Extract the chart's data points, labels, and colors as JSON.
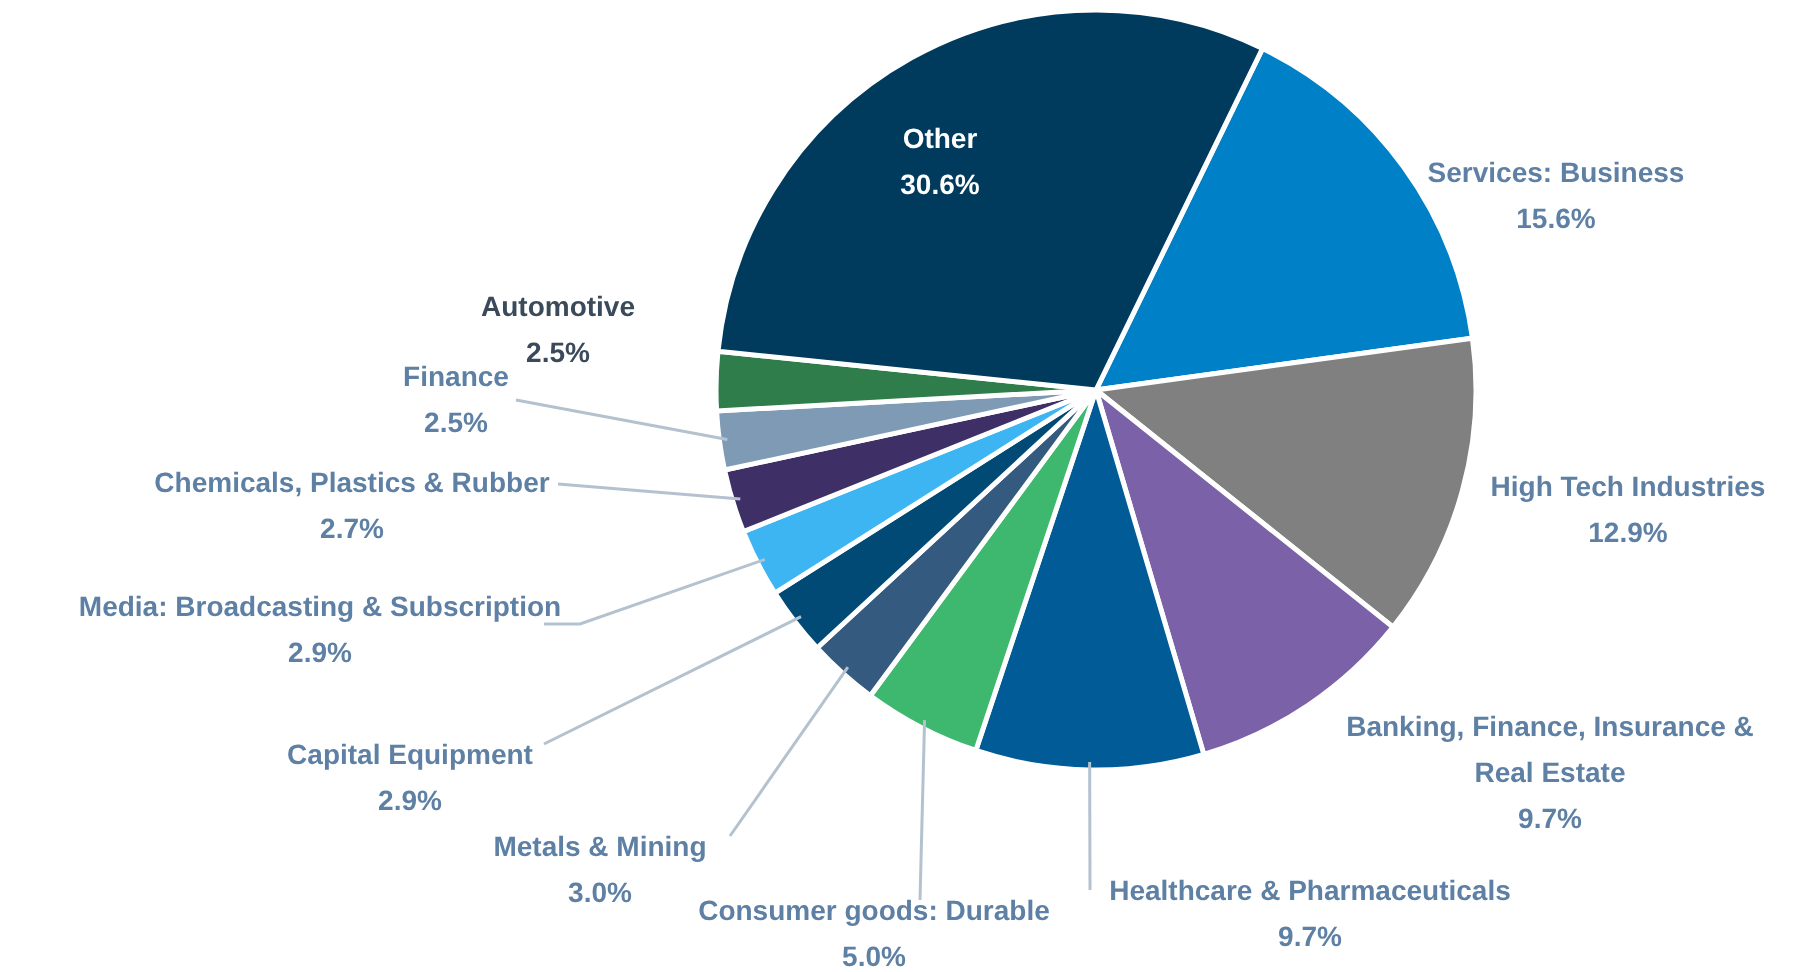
{
  "chart_data": {
    "type": "pie",
    "categories": [
      "Services: Business",
      "High Tech Industries",
      "Banking, Finance, Insurance & Real Estate",
      "Healthcare & Pharmaceuticals",
      "Consumer goods: Durable",
      "Metals & Mining",
      "Capital Equipment",
      "Media: Broadcasting & Subscription",
      "Chemicals, Plastics & Rubber",
      "Finance",
      "Automotive",
      "Other"
    ],
    "values": [
      15.6,
      12.9,
      9.7,
      9.7,
      5.0,
      3.0,
      2.9,
      2.9,
      2.7,
      2.5,
      2.5,
      30.6
    ],
    "value_labels": [
      "15.6%",
      "12.9%",
      "9.7%",
      "9.7%",
      "5.0%",
      "3.0%",
      "2.9%",
      "2.9%",
      "2.7%",
      "2.5%",
      "2.5%",
      "30.6%"
    ],
    "colors": [
      "#0080c6",
      "#808080",
      "#7b62a8",
      "#005b96",
      "#3fb86f",
      "#345a80",
      "#004a75",
      "#3db5f2",
      "#3e2f66",
      "#7f9ab5",
      "#2e7d4a",
      "#003a5d"
    ]
  }
}
